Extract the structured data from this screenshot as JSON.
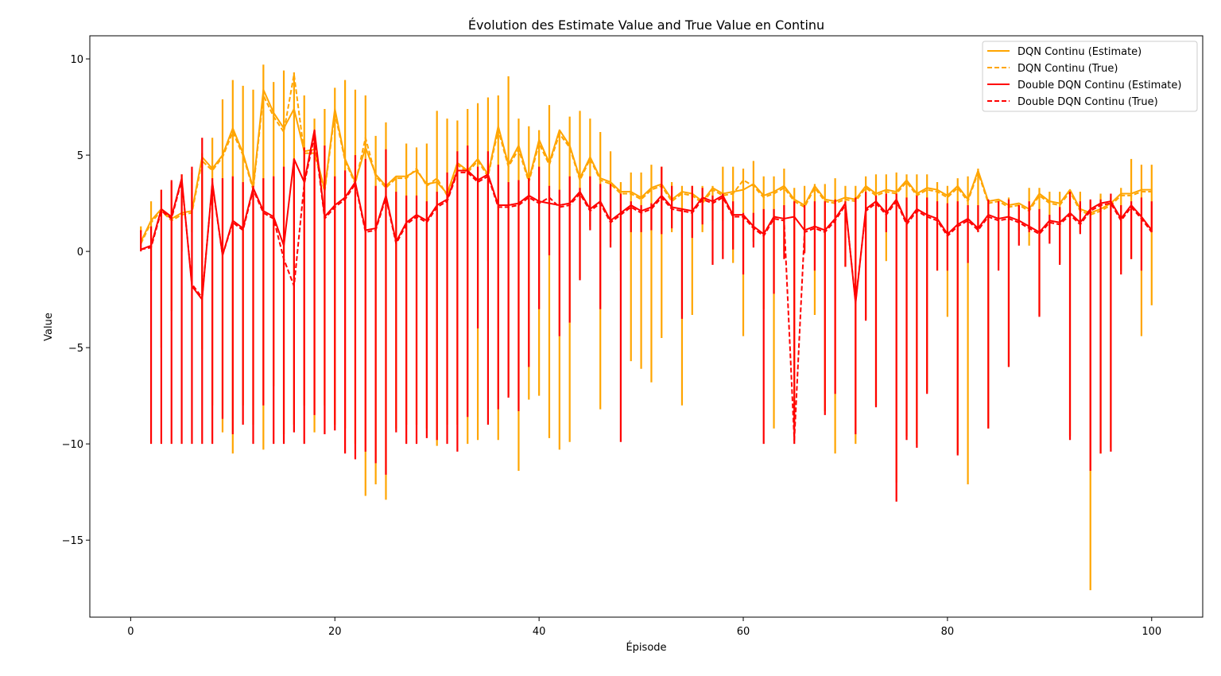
{
  "chart_data": {
    "type": "line",
    "title": "Évolution des Estimate Value and True Value en Continu",
    "xlabel": "Épisode",
    "ylabel": "Value",
    "xlim": [
      -4,
      105
    ],
    "ylim": [
      -19,
      11.2
    ],
    "xticks": [
      0,
      20,
      40,
      60,
      80,
      100
    ],
    "yticks": [
      -15,
      -10,
      -5,
      0,
      5,
      10
    ],
    "ytick_labels": [
      "−15",
      "−10",
      "−5",
      "0",
      "5",
      "10"
    ],
    "legend_position": "top-right",
    "grid": false,
    "x": [
      1,
      2,
      3,
      4,
      5,
      6,
      7,
      8,
      9,
      10,
      11,
      12,
      13,
      14,
      15,
      16,
      17,
      18,
      19,
      20,
      21,
      22,
      23,
      24,
      25,
      26,
      27,
      28,
      29,
      30,
      31,
      32,
      33,
      34,
      35,
      36,
      37,
      38,
      39,
      40,
      41,
      42,
      43,
      44,
      45,
      46,
      47,
      48,
      49,
      50,
      51,
      52,
      53,
      54,
      55,
      56,
      57,
      58,
      59,
      60,
      61,
      62,
      63,
      64,
      65,
      66,
      67,
      68,
      69,
      70,
      71,
      72,
      73,
      74,
      75,
      76,
      77,
      78,
      79,
      80,
      81,
      82,
      83,
      84,
      85,
      86,
      87,
      88,
      89,
      90,
      91,
      92,
      93,
      94,
      95,
      96,
      97,
      98,
      99,
      100
    ],
    "series": [
      {
        "name": "DQN Continu (Estimate)",
        "color": "#ffa500",
        "dash": "solid",
        "values": [
          0.5,
          1.6,
          2.2,
          1.7,
          2.0,
          2.1,
          4.9,
          4.3,
          5.0,
          6.4,
          5.1,
          3.3,
          8.4,
          7.2,
          6.4,
          7.4,
          5.2,
          5.3,
          3.2,
          7.4,
          4.8,
          3.6,
          5.4,
          4.0,
          3.4,
          3.9,
          3.9,
          4.2,
          3.5,
          3.6,
          3.0,
          4.6,
          4.2,
          4.8,
          4.0,
          6.5,
          4.5,
          5.5,
          3.7,
          5.8,
          4.6,
          6.3,
          5.5,
          3.8,
          4.9,
          3.8,
          3.6,
          3.1,
          3.1,
          2.8,
          3.3,
          3.5,
          2.7,
          3.1,
          3.0,
          2.6,
          3.3,
          3.0,
          3.1,
          3.2,
          3.5,
          2.9,
          3.1,
          3.4,
          2.7,
          2.4,
          3.4,
          2.7,
          2.6,
          2.8,
          2.7,
          3.4,
          3.0,
          3.2,
          3.1,
          3.7,
          3.0,
          3.3,
          3.2,
          2.9,
          3.4,
          2.7,
          4.2,
          2.6,
          2.7,
          2.4,
          2.5,
          2.2,
          3.0,
          2.6,
          2.5,
          3.2,
          2.2,
          2.0,
          2.2,
          2.5,
          3.0,
          3.0,
          3.2,
          3.2
        ],
        "spike_min": [
          1.0,
          -1.0,
          -5.0,
          -3.1,
          0.0,
          1.0,
          -5.1,
          -8.0,
          -9.4,
          -10.5,
          -8.0,
          -9.0,
          -10.3,
          -7.0,
          -9.5,
          -9.0,
          -8.0,
          -9.4,
          -8.0,
          -9.0,
          -9.2,
          -10.0,
          -12.7,
          -12.1,
          -12.9,
          -9.2,
          -9.0,
          -9.0,
          -9.2,
          -10.1,
          -9.0,
          -9.0,
          -10.0,
          -9.8,
          -0.5,
          -9.8,
          -7.5,
          -11.4,
          -7.7,
          -7.5,
          -9.7,
          -10.3,
          -9.9,
          -1.4,
          1.3,
          -8.2,
          0.5,
          -1.0,
          -5.7,
          -6.1,
          -6.8,
          -4.5,
          1.0,
          -8.0,
          -3.3,
          1.0,
          1.6,
          1.6,
          -0.6,
          -4.4,
          0.5,
          -3.0,
          -9.2,
          0.0,
          -9.0,
          0.0,
          -3.3,
          -8.3,
          -10.5,
          -0.8,
          -10.0,
          -3.5,
          -8.0,
          -0.5,
          -12.0,
          -9.6,
          -10.0,
          -7.3,
          -1.0,
          -3.4,
          -10.5,
          -12.1,
          1.0,
          -9.2,
          -0.6,
          -6.0,
          1.1,
          0.3,
          -3.3,
          0.6,
          -0.6,
          -9.6,
          1.0,
          -17.6,
          -10.5,
          -10.2,
          -1.0,
          -0.4,
          -4.4,
          -2.8
        ],
        "spike_max": [
          1.3,
          2.6,
          3.2,
          3.6,
          4.0,
          4.1,
          5.1,
          5.9,
          7.9,
          8.9,
          8.6,
          8.4,
          9.7,
          8.8,
          9.4,
          9.3,
          8.1,
          6.9,
          7.4,
          8.5,
          8.9,
          8.4,
          8.1,
          6.0,
          6.7,
          3.9,
          5.6,
          5.4,
          5.6,
          7.3,
          6.9,
          6.8,
          7.4,
          7.7,
          8.0,
          8.1,
          9.1,
          6.9,
          6.5,
          6.3,
          7.6,
          6.3,
          7.0,
          7.3,
          6.9,
          6.2,
          5.2,
          3.6,
          4.1,
          4.1,
          4.5,
          4.4,
          3.6,
          3.4,
          3.4,
          3.4,
          3.4,
          4.4,
          4.4,
          4.3,
          4.7,
          3.9,
          3.9,
          4.3,
          3.3,
          3.4,
          3.5,
          3.5,
          3.8,
          3.4,
          3.4,
          3.9,
          4.0,
          4.0,
          4.1,
          4.0,
          4.0,
          4.0,
          3.6,
          3.4,
          3.8,
          3.9,
          4.3,
          2.6,
          2.6,
          2.8,
          2.4,
          3.3,
          3.3,
          3.1,
          3.1,
          3.2,
          3.1,
          2.6,
          3.0,
          2.8,
          3.3,
          4.8,
          4.5,
          4.5
        ]
      },
      {
        "name": "DQN Continu (True)",
        "color": "#ffa500",
        "dash": "dashed",
        "values": [
          0.4,
          1.5,
          2.1,
          1.6,
          1.9,
          2.0,
          4.7,
          4.2,
          4.9,
          6.2,
          5.0,
          3.2,
          8.1,
          7.0,
          6.2,
          9.2,
          5.1,
          5.1,
          3.1,
          7.2,
          4.7,
          3.5,
          5.9,
          3.9,
          3.3,
          3.8,
          3.8,
          4.3,
          3.4,
          3.8,
          2.9,
          4.5,
          4.1,
          4.7,
          3.9,
          6.3,
          4.4,
          5.3,
          3.6,
          5.6,
          4.5,
          6.1,
          5.4,
          3.7,
          4.8,
          3.7,
          3.5,
          3.0,
          3.0,
          2.7,
          3.2,
          3.4,
          2.6,
          3.0,
          2.9,
          2.5,
          3.2,
          2.9,
          3.0,
          3.7,
          3.4,
          2.8,
          3.0,
          3.3,
          2.6,
          2.3,
          3.3,
          2.6,
          2.5,
          2.7,
          2.6,
          3.3,
          2.9,
          3.1,
          3.0,
          3.6,
          2.9,
          3.2,
          3.1,
          2.8,
          3.3,
          2.6,
          4.1,
          2.5,
          2.6,
          2.3,
          2.4,
          2.1,
          2.9,
          2.5,
          2.4,
          3.1,
          2.1,
          1.9,
          2.1,
          2.4,
          2.9,
          2.9,
          3.1,
          3.1
        ]
      },
      {
        "name": "Double DQN Continu (Estimate)",
        "color": "#ff0000",
        "dash": "solid",
        "values": [
          0.1,
          0.3,
          2.2,
          1.8,
          3.8,
          -1.8,
          -2.5,
          3.6,
          -0.2,
          1.6,
          1.2,
          3.3,
          2.1,
          1.8,
          0.3,
          4.8,
          3.6,
          6.3,
          1.8,
          2.4,
          2.8,
          3.6,
          1.1,
          1.2,
          2.9,
          0.5,
          1.5,
          1.9,
          1.6,
          2.4,
          2.7,
          4.2,
          4.2,
          3.7,
          4.0,
          2.4,
          2.4,
          2.5,
          2.9,
          2.6,
          2.5,
          2.4,
          2.5,
          3.1,
          2.2,
          2.6,
          1.6,
          2.0,
          2.4,
          2.1,
          2.3,
          2.9,
          2.3,
          2.2,
          2.1,
          2.8,
          2.6,
          2.9,
          1.9,
          1.9,
          1.3,
          0.9,
          1.8,
          1.7,
          1.8,
          1.1,
          1.3,
          1.1,
          1.7,
          2.5,
          -2.7,
          2.2,
          2.6,
          2.0,
          2.7,
          1.5,
          2.2,
          1.9,
          1.7,
          0.9,
          1.4,
          1.7,
          1.2,
          1.9,
          1.7,
          1.8,
          1.6,
          1.3,
          1.0,
          1.6,
          1.5,
          2.0,
          1.5,
          2.2,
          2.5,
          2.6,
          1.7,
          2.4,
          1.8,
          1.1
        ],
        "spike_min": [
          0.0,
          -10.0,
          -10.0,
          -10.0,
          -10.0,
          -10.0,
          -10.0,
          -10.0,
          -8.7,
          -9.5,
          -9.0,
          -10.0,
          -8.0,
          -10.0,
          -10.0,
          -9.4,
          -10.0,
          -8.5,
          -9.5,
          -9.3,
          -10.5,
          -10.8,
          -10.4,
          -11.0,
          -11.6,
          -9.4,
          -10.0,
          -10.0,
          -9.7,
          -9.8,
          -10.0,
          -10.4,
          -8.6,
          -4.0,
          -9.0,
          -8.2,
          -7.6,
          -8.3,
          -6.0,
          -3.0,
          -0.2,
          -4.4,
          -3.7,
          -1.5,
          1.1,
          -3.0,
          0.2,
          -9.9,
          1.0,
          1.0,
          1.1,
          0.9,
          1.2,
          -3.5,
          0.7,
          1.4,
          -0.7,
          -0.4,
          0.1,
          -1.2,
          0.2,
          -10.0,
          -2.2,
          -0.4,
          -10.0,
          -0.1,
          -1.0,
          -8.5,
          -7.4,
          -0.8,
          -9.5,
          -3.6,
          -8.1,
          1.0,
          -13.0,
          -9.8,
          -10.2,
          -7.4,
          -1.0,
          -1.0,
          -10.6,
          -0.6,
          1.0,
          -9.2,
          -1.0,
          -6.0,
          0.3,
          1.0,
          -3.4,
          0.4,
          -0.7,
          -9.8,
          0.9,
          -11.4,
          -10.5,
          -10.4,
          -1.2,
          -0.4,
          -1.0,
          1.0
        ],
        "spike_max": [
          1.1,
          1.3,
          3.2,
          3.7,
          4.0,
          4.4,
          5.9,
          3.8,
          3.8,
          3.9,
          3.6,
          3.4,
          3.8,
          3.9,
          4.4,
          4.8,
          5.4,
          6.3,
          5.5,
          3.9,
          4.2,
          5.0,
          4.8,
          3.4,
          5.3,
          3.1,
          2.9,
          2.9,
          2.6,
          3.1,
          4.1,
          5.2,
          5.5,
          4.4,
          5.2,
          4.5,
          3.6,
          3.7,
          3.8,
          4.4,
          3.4,
          3.2,
          3.9,
          3.3,
          3.9,
          3.5,
          3.5,
          3.0,
          2.6,
          2.4,
          2.5,
          4.4,
          3.4,
          2.2,
          3.4,
          3.3,
          2.9,
          3.0,
          2.6,
          2.0,
          2.0,
          2.2,
          2.2,
          2.4,
          2.6,
          2.4,
          2.6,
          2.6,
          2.7,
          2.6,
          2.8,
          3.1,
          2.9,
          3.0,
          3.0,
          2.8,
          2.9,
          2.8,
          2.6,
          2.5,
          2.6,
          2.4,
          2.4,
          2.7,
          2.6,
          2.7,
          2.4,
          2.6,
          2.2,
          1.9,
          2.3,
          3.1,
          2.6,
          2.7,
          2.7,
          3.0,
          2.4,
          2.6,
          2.8,
          2.6
        ]
      },
      {
        "name": "Double DQN Continu (True)",
        "color": "#ff0000",
        "dash": "dashed",
        "values": [
          0.1,
          0.2,
          2.1,
          1.7,
          3.7,
          -1.7,
          -2.4,
          3.5,
          -0.2,
          1.5,
          1.1,
          3.2,
          2.0,
          1.7,
          -0.4,
          -1.8,
          3.5,
          6.0,
          1.7,
          2.3,
          2.7,
          3.5,
          1.0,
          1.1,
          2.8,
          0.4,
          1.4,
          1.8,
          1.5,
          2.3,
          2.6,
          4.1,
          4.1,
          3.6,
          3.9,
          2.3,
          2.3,
          2.4,
          2.8,
          2.5,
          2.8,
          2.3,
          2.4,
          3.0,
          2.1,
          2.5,
          1.5,
          1.9,
          2.3,
          2.0,
          2.2,
          2.8,
          2.2,
          2.1,
          2.0,
          2.7,
          2.5,
          2.8,
          1.8,
          1.8,
          1.2,
          0.8,
          1.7,
          1.6,
          -9.8,
          1.0,
          1.2,
          1.0,
          1.6,
          2.4,
          -2.6,
          2.1,
          2.5,
          1.9,
          2.6,
          1.4,
          2.1,
          1.8,
          1.6,
          0.8,
          1.3,
          1.6,
          1.1,
          1.8,
          1.6,
          1.7,
          1.5,
          1.2,
          0.9,
          1.5,
          1.4,
          1.9,
          1.4,
          2.1,
          2.4,
          2.5,
          1.6,
          2.3,
          1.7,
          1.0
        ]
      }
    ]
  }
}
